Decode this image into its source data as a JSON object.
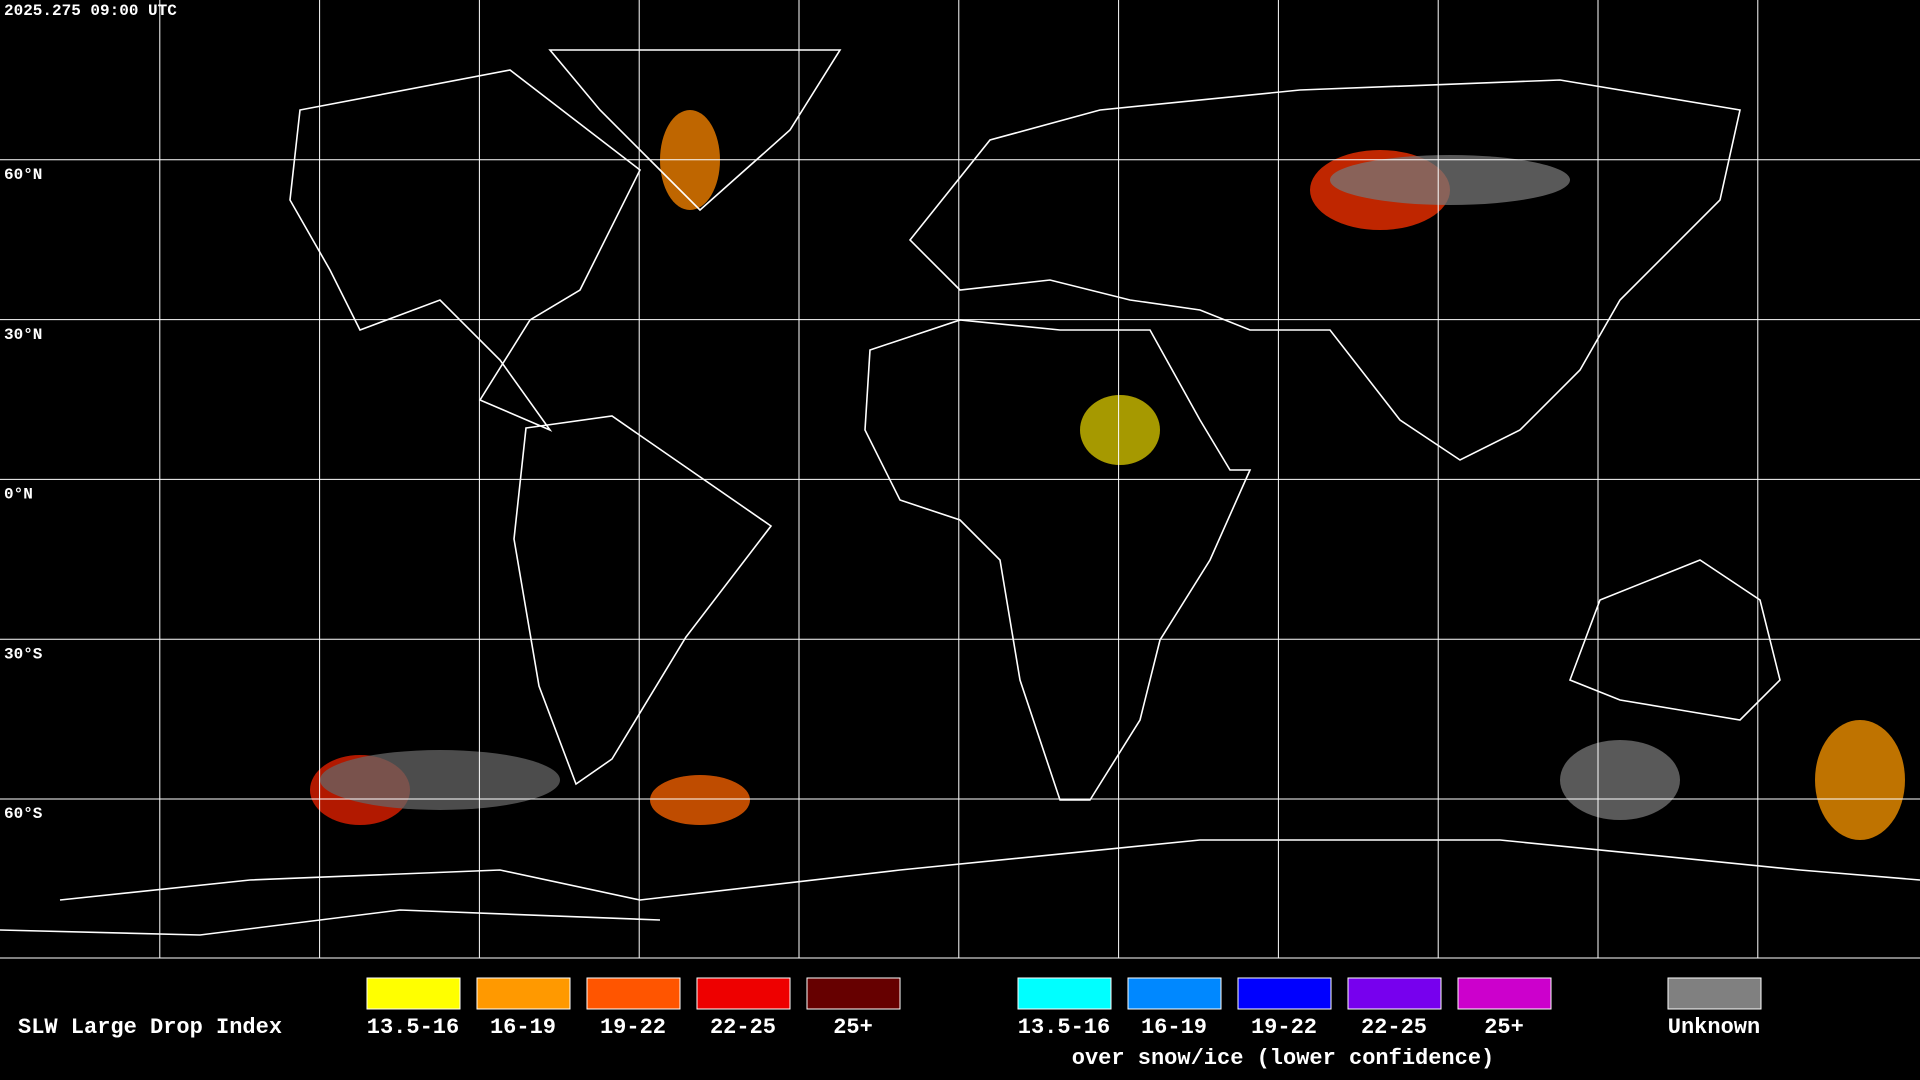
{
  "timestamp": "2025.275 09:00 UTC",
  "latitude_labels": [
    "60°N",
    "30°N",
    "0°N",
    "30°S",
    "60°S"
  ],
  "legend": {
    "title": "SLW Large Drop Index",
    "items": [
      {
        "label": "13.5-16",
        "color": "#ffff00"
      },
      {
        "label": "16-19",
        "color": "#ff9900"
      },
      {
        "label": "19-22",
        "color": "#ff5500"
      },
      {
        "label": "22-25",
        "color": "#ee0000"
      },
      {
        "label": "25+",
        "color": "#660000"
      }
    ],
    "snow_items": [
      {
        "label": "13.5-16",
        "color": "#00ffff"
      },
      {
        "label": "16-19",
        "color": "#0088ff"
      },
      {
        "label": "19-22",
        "color": "#0000ff"
      },
      {
        "label": "22-25",
        "color": "#7700ee"
      },
      {
        "label": "25+",
        "color": "#cc00cc"
      }
    ],
    "snow_caption": "over snow/ice (lower confidence)",
    "unknown": {
      "label": "Unknown",
      "color": "#808080"
    }
  }
}
